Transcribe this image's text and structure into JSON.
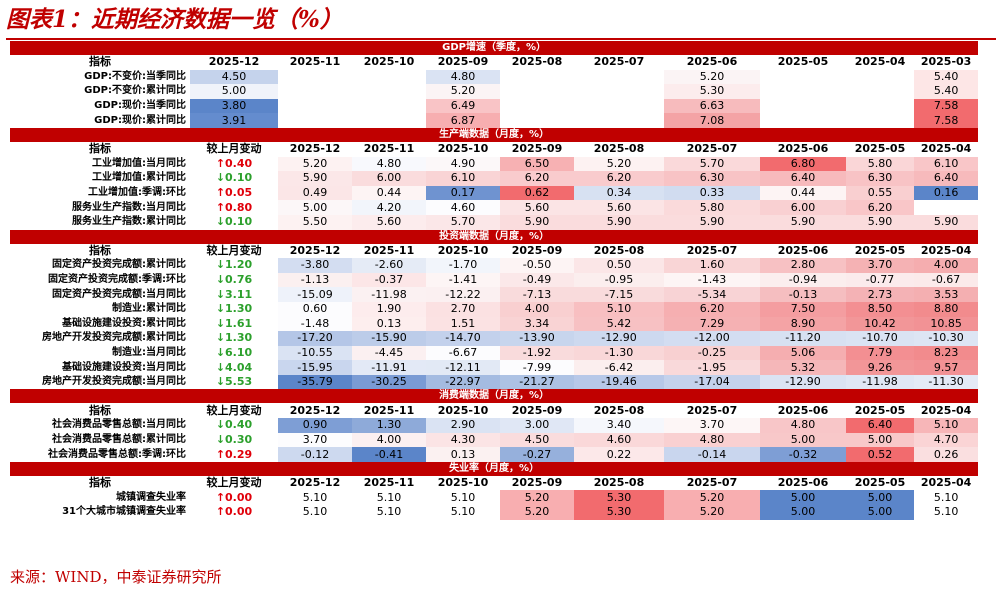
{
  "title": "图表1：近期经济数据一览（%）",
  "source": "来源：WIND，中泰证券研究所",
  "colors": {
    "accent": "#c00000",
    "up": "#e0000a",
    "down": "#2ca02c"
  },
  "sections": [
    {
      "name": "GDP增速（季度，%）",
      "header": [
        "指标",
        "2025-12",
        "2025-11",
        "2025-10",
        "2025-09",
        "2025-08",
        "2025-07",
        "2025-06",
        "2025-05",
        "2025-04",
        "2025-03"
      ],
      "has_change": false,
      "rows": [
        {
          "label": "GDP:不变价:当季同比",
          "values": [
            "4.50",
            "",
            "",
            "4.80",
            "",
            "",
            "5.20",
            "",
            "",
            "5.40"
          ],
          "colors": [
            "#c5d3ec",
            "",
            "",
            "#dae3f3",
            "",
            "",
            "#fbf4f5",
            "",
            "",
            "#fde6e6"
          ]
        },
        {
          "label": "GDP:不变价:累计同比",
          "values": [
            "5.00",
            "",
            "",
            "5.20",
            "",
            "",
            "5.30",
            "",
            "",
            "5.40"
          ],
          "colors": [
            "#f0f3fa",
            "",
            "",
            "#fbf4f5",
            "",
            "",
            "#fceced",
            "",
            "",
            "#fde6e6"
          ]
        },
        {
          "label": "GDP:现价:当季同比",
          "values": [
            "3.80",
            "",
            "",
            "6.49",
            "",
            "",
            "6.63",
            "",
            "",
            "7.58"
          ],
          "colors": [
            "#5b85c9",
            "",
            "",
            "#f9c4c6",
            "",
            "",
            "#f7bbbd",
            "",
            "",
            "#f26b6e"
          ]
        },
        {
          "label": "GDP:现价:累计同比",
          "values": [
            "3.91",
            "",
            "",
            "6.87",
            "",
            "",
            "7.08",
            "",
            "",
            "7.58"
          ],
          "colors": [
            "#648cce",
            "",
            "",
            "#f7aeb0",
            "",
            "",
            "#f4a3a5",
            "",
            "",
            "#f26b6e"
          ]
        }
      ]
    },
    {
      "name": "生产端数据（月度，%）",
      "header": [
        "指标",
        "较上月变动",
        "2025-12",
        "2025-11",
        "2025-10",
        "2025-09",
        "2025-08",
        "2025-07",
        "2025-06",
        "2025-05",
        "2025-04"
      ],
      "has_change": true,
      "rows": [
        {
          "label": "工业增加值:当月同比",
          "change": "0.40",
          "dir": "up",
          "values": [
            "5.20",
            "4.80",
            "4.90",
            "6.50",
            "5.20",
            "5.70",
            "6.80",
            "5.80",
            "6.10"
          ],
          "colors": [
            "#fdf2f2",
            "#f8f9fd",
            "#fcf8f9",
            "#f7b1b3",
            "#fdf2f2",
            "#fad9da",
            "#f26b6e",
            "#fad6d7",
            "#f9c6c8"
          ]
        },
        {
          "label": "工业增加值:累计同比",
          "change": "0.10",
          "dir": "down",
          "values": [
            "5.90",
            "6.00",
            "6.10",
            "6.20",
            "6.20",
            "6.30",
            "6.40",
            "6.30",
            "6.40"
          ],
          "colors": [
            "#fbe7e8",
            "#fadcdd",
            "#f9d4d5",
            "#f9cbcd",
            "#f9cbcd",
            "#f8c3c5",
            "#f7babc",
            "#f8c3c5",
            "#f7babc"
          ]
        },
        {
          "label": "工业增加值:季调:环比",
          "change": "0.05",
          "dir": "up",
          "values": [
            "0.49",
            "0.44",
            "0.17",
            "0.62",
            "0.34",
            "0.33",
            "0.44",
            "0.55",
            "0.16"
          ],
          "colors": [
            "#fbe6e7",
            "#fdf4f4",
            "#6f93d0",
            "#f26b6e",
            "#d7e1f2",
            "#d1dcf0",
            "#fdf4f4",
            "#f9cfd0",
            "#5b85c9"
          ]
        },
        {
          "label": "服务业生产指数:当月同比",
          "change": "0.80",
          "dir": "up",
          "values": [
            "5.00",
            "4.20",
            "4.60",
            "5.60",
            "5.60",
            "5.80",
            "6.00",
            "6.20",
            ""
          ],
          "colors": [
            "#fcf7f8",
            "#f2f5fb",
            "#fcfcfe",
            "#fbe4e5",
            "#fbe4e5",
            "#fadadb",
            "#f9d0d2",
            "#f9c6c8",
            ""
          ]
        },
        {
          "label": "服务业生产指数:累计同比",
          "change": "0.10",
          "dir": "down",
          "values": [
            "5.50",
            "5.60",
            "5.70",
            "5.90",
            "5.90",
            "5.90",
            "5.90",
            "5.90",
            "5.90"
          ],
          "colors": [
            "#fdf2f2",
            "#fceced",
            "#fbe7e8",
            "#fadcdd",
            "#fadcdd",
            "#fadcdd",
            "#fadcdd",
            "#fadcdd",
            "#fadcdd"
          ]
        }
      ]
    },
    {
      "name": "投资端数据（月度，%）",
      "header": [
        "指标",
        "较上月变动",
        "2025-12",
        "2025-11",
        "2025-10",
        "2025-09",
        "2025-08",
        "2025-07",
        "2025-06",
        "2025-05",
        "2025-04"
      ],
      "has_change": true,
      "rows": [
        {
          "label": "固定资产投资完成额:累计同比",
          "change": "1.20",
          "dir": "down",
          "values": [
            "-3.80",
            "-2.60",
            "-1.70",
            "-0.50",
            "0.50",
            "1.60",
            "2.80",
            "3.70",
            "4.00"
          ],
          "colors": [
            "#d3ddf1",
            "#e5ebf6",
            "#f2f5fb",
            "#fdf4f4",
            "#fbe6e7",
            "#f9d5d6",
            "#f7c1c3",
            "#f5b2b4",
            "#f5adaf"
          ]
        },
        {
          "label": "固定资产投资完成额:季调:环比",
          "change": "0.76",
          "dir": "down",
          "values": [
            "-1.13",
            "-0.37",
            "-1.41",
            "-0.49",
            "-0.95",
            "-1.43",
            "-0.94",
            "-0.77",
            "-0.67"
          ],
          "colors": [
            "#fbf0f0",
            "#fce6e7",
            "#fdf5f5",
            "#fbe8e9",
            "#fbeeee",
            "#fdf5f5",
            "#fbeeee",
            "#fbebec",
            "#fbeaea"
          ]
        },
        {
          "label": "固定资产投资完成额:当月同比",
          "change": "3.11",
          "dir": "down",
          "values": [
            "-15.09",
            "-11.98",
            "-12.22",
            "-7.13",
            "-7.15",
            "-5.34",
            "-0.13",
            "2.73",
            "3.53"
          ],
          "colors": [
            "#eef2fa",
            "#fbf1f2",
            "#fbf0f1",
            "#f9dbdc",
            "#f9dbdc",
            "#f8d3d5",
            "#f5bec0",
            "#f4b2b5",
            "#f4afb1"
          ]
        },
        {
          "label": "制造业:累计同比",
          "change": "1.30",
          "dir": "down",
          "values": [
            "0.60",
            "1.90",
            "2.70",
            "4.00",
            "5.10",
            "6.20",
            "7.50",
            "8.50",
            "8.80"
          ],
          "colors": [
            "#fcfcfe",
            "#fdeced",
            "#fbe1e2",
            "#f9cfd0",
            "#f8bfc1",
            "#f6afb1",
            "#f49da0",
            "#f38f92",
            "#f28b8d"
          ]
        },
        {
          "label": "基础设施建设投资:累计同比",
          "change": "1.61",
          "dir": "down",
          "values": [
            "-1.48",
            "0.13",
            "1.51",
            "3.34",
            "5.42",
            "7.29",
            "8.90",
            "10.42",
            "10.85"
          ],
          "colors": [
            "#fcfcfe",
            "#fdeeee",
            "#fbe2e3",
            "#f9d3d4",
            "#f7c1c3",
            "#f5b1b3",
            "#f4a3a5",
            "#f29698",
            "#f29295"
          ]
        },
        {
          "label": "房地产开发投资完成额:累计同比",
          "change": "1.30",
          "dir": "down",
          "values": [
            "-17.20",
            "-15.90",
            "-14.70",
            "-13.90",
            "-12.90",
            "-12.00",
            "-11.20",
            "-10.70",
            "-10.30"
          ],
          "colors": [
            "#b4c6e7",
            "#bccce9",
            "#c3d1ec",
            "#c7d5ed",
            "#cdd9ef",
            "#d3ddf1",
            "#d7e1f2",
            "#dae3f3",
            "#dde5f4"
          ]
        },
        {
          "label": "制造业:当月同比",
          "change": "6.10",
          "dir": "down",
          "values": [
            "-10.55",
            "-4.45",
            "-6.67",
            "-1.92",
            "-1.30",
            "-0.25",
            "5.06",
            "7.79",
            "8.23"
          ],
          "colors": [
            "#dae3f3",
            "#fbf0f1",
            "#fcfcfe",
            "#f9dbdc",
            "#f9d7d8",
            "#f8d0d1",
            "#f5aeb0",
            "#f38f92",
            "#f28b8d"
          ]
        },
        {
          "label": "基础设施建设投资:当月同比",
          "change": "4.04",
          "dir": "down",
          "values": [
            "-15.95",
            "-11.91",
            "-12.11",
            "-7.99",
            "-6.42",
            "-1.95",
            "5.32",
            "9.26",
            "9.57"
          ],
          "colors": [
            "#c9d6ee",
            "#e3e9f6",
            "#e2e9f5",
            "#fcfcfe",
            "#fbeeee",
            "#f9d9da",
            "#f5b7b9",
            "#f29698",
            "#f29295"
          ]
        },
        {
          "label": "房地产开发投资完成额:当月同比",
          "change": "5.53",
          "dir": "down",
          "values": [
            "-35.79",
            "-30.25",
            "-22.97",
            "-21.27",
            "-19.46",
            "-17.04",
            "-12.90",
            "-11.98",
            "-11.30"
          ],
          "colors": [
            "#5b85c9",
            "#7a9bd4",
            "#a4bbe1",
            "#adc2e4",
            "#b7c8e8",
            "#c4d2ec",
            "#dbe3f3",
            "#e0e7f5",
            "#e4eaf6"
          ]
        }
      ]
    },
    {
      "name": "消费端数据（月度，%）",
      "header": [
        "指标",
        "较上月变动",
        "2025-12",
        "2025-11",
        "2025-10",
        "2025-09",
        "2025-08",
        "2025-07",
        "2025-06",
        "2025-05",
        "2025-04"
      ],
      "has_change": true,
      "rows": [
        {
          "label": "社会消费品零售总额:当月同比",
          "change": "0.40",
          "dir": "down",
          "values": [
            "0.90",
            "1.30",
            "2.90",
            "3.00",
            "3.40",
            "3.70",
            "4.80",
            "6.40",
            "5.10"
          ],
          "colors": [
            "#7e9ed5",
            "#8eaad9",
            "#dae3f3",
            "#e0e7f5",
            "#f5f7fc",
            "#fdf6f6",
            "#f8c6c8",
            "#f26b6e",
            "#f7b6b8"
          ]
        },
        {
          "label": "社会消费品零售总额:累计同比",
          "change": "0.30",
          "dir": "down",
          "values": [
            "3.70",
            "4.00",
            "4.30",
            "4.50",
            "4.60",
            "4.80",
            "5.00",
            "5.00",
            "4.70"
          ],
          "colors": [
            "#fcfcfe",
            "#fcf0f1",
            "#fbe4e5",
            "#fadcdd",
            "#fad8d9",
            "#f9d0d1",
            "#f8c8c9",
            "#f8c8c9",
            "#fad4d5"
          ]
        },
        {
          "label": "社会消费品零售总额:季调:环比",
          "change": "0.29",
          "dir": "up",
          "values": [
            "-0.12",
            "-0.41",
            "0.13",
            "-0.27",
            "0.22",
            "-0.14",
            "-0.32",
            "0.52",
            "0.26"
          ],
          "colors": [
            "#cdd9ef",
            "#5b85c9",
            "#fbf1f1",
            "#96b0dc",
            "#fce8e9",
            "#c9d6ee",
            "#7e9ed5",
            "#f26b6e",
            "#fadfe0"
          ]
        }
      ]
    },
    {
      "name": "失业率（月度，%）",
      "header": [
        "指标",
        "较上月变动",
        "2025-12",
        "2025-11",
        "2025-10",
        "2025-09",
        "2025-08",
        "2025-07",
        "2025-06",
        "2025-05",
        "2025-04"
      ],
      "has_change": true,
      "rows": [
        {
          "label": "城镇调查失业率",
          "change": "0.00",
          "dir": "up",
          "values": [
            "5.10",
            "5.10",
            "5.10",
            "5.20",
            "5.30",
            "5.20",
            "5.00",
            "5.00",
            "5.10"
          ],
          "colors": [
            "#ffffff",
            "#ffffff",
            "#ffffff",
            "#f8aeb0",
            "#f26b6e",
            "#f8aeb0",
            "#5b85c9",
            "#5b85c9",
            "#ffffff"
          ]
        },
        {
          "label": "31个大城市城镇调查失业率",
          "change": "0.00",
          "dir": "up",
          "values": [
            "5.10",
            "5.10",
            "5.10",
            "5.20",
            "5.30",
            "5.20",
            "5.00",
            "5.00",
            "5.10"
          ],
          "colors": [
            "#ffffff",
            "#ffffff",
            "#ffffff",
            "#f8aeb0",
            "#f26b6e",
            "#f8aeb0",
            "#5b85c9",
            "#5b85c9",
            "#ffffff"
          ]
        }
      ]
    }
  ]
}
